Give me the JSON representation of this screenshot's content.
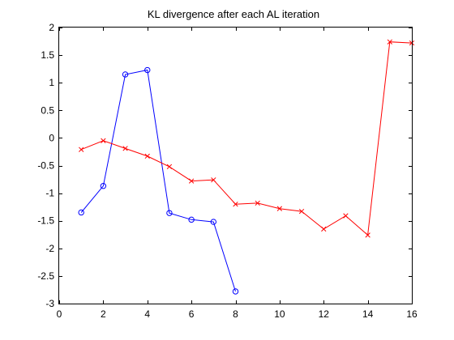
{
  "window": {
    "background": "#ffffff"
  },
  "chart_data": {
    "type": "line",
    "title": "KL divergence after each AL iteration",
    "xlabel": "",
    "ylabel": "",
    "xlim": [
      0,
      16
    ],
    "ylim": [
      -3,
      2
    ],
    "x_ticks": [
      0,
      2,
      4,
      6,
      8,
      10,
      12,
      14,
      16
    ],
    "x_tick_labels": [
      "0",
      "2",
      "4",
      "6",
      "8",
      "10",
      "12",
      "14",
      "16"
    ],
    "y_ticks": [
      -3,
      -2.5,
      -2,
      -1.5,
      -1,
      -0.5,
      0,
      0.5,
      1,
      1.5,
      2
    ],
    "y_tick_labels": [
      "-3",
      "-2.5",
      "-2",
      "-1.5",
      "-1",
      "-0.5",
      "0",
      "0.5",
      "1",
      "1.5",
      "2"
    ],
    "grid": false,
    "legend": "none",
    "series": [
      {
        "color": "#0000ff",
        "marker": "circle",
        "x": [
          1,
          2,
          3,
          4,
          5,
          6,
          7,
          8
        ],
        "y": [
          -1.35,
          -0.87,
          1.15,
          1.23,
          -1.36,
          -1.48,
          -1.52,
          -2.78
        ]
      },
      {
        "color": "#ff0000",
        "marker": "x",
        "x": [
          1,
          2,
          3,
          4,
          5,
          6,
          7,
          8,
          9,
          10,
          11,
          12,
          13,
          14,
          15,
          16
        ],
        "y": [
          -0.21,
          -0.05,
          -0.19,
          -0.33,
          -0.52,
          -0.78,
          -0.76,
          -1.2,
          -1.18,
          -1.28,
          -1.33,
          -1.65,
          -1.41,
          -1.76,
          1.74,
          1.72
        ]
      }
    ]
  }
}
